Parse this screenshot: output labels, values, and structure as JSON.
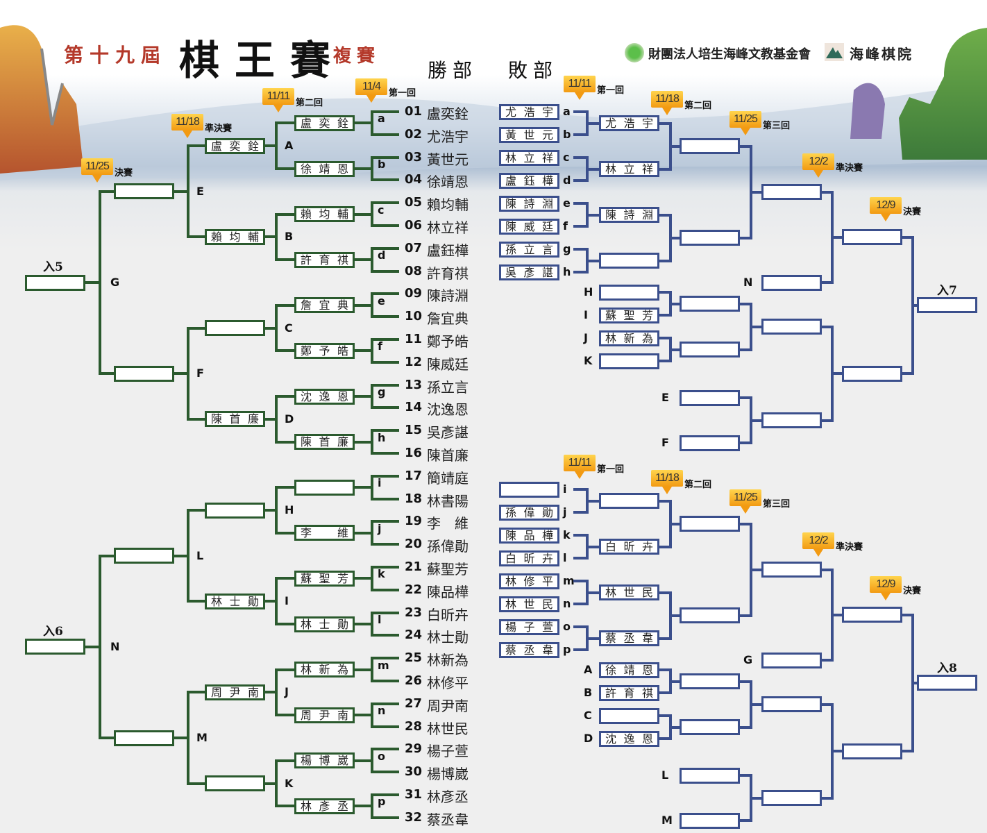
{
  "header": {
    "edition": "第十九屆",
    "title": "棋王賽",
    "stage": "複賽",
    "winners_label": "勝部",
    "losers_label": "敗部",
    "foundation": "財團法人培生海峰文教基金會",
    "academy": "海峰棋院"
  },
  "colors": {
    "winners_line": "#2b5a2e",
    "losers_line": "#3b4f8c",
    "badge": "#f5a623",
    "title_red": "#b4392a"
  },
  "winners": {
    "badges": [
      {
        "date": "11/4",
        "label": "第一回"
      },
      {
        "date": "11/11",
        "label": "第二回"
      },
      {
        "date": "11/18",
        "label": "準決賽"
      },
      {
        "date": "11/25",
        "label": "決賽"
      }
    ],
    "players": [
      {
        "num": "01",
        "name": "盧奕銓"
      },
      {
        "num": "02",
        "name": "尤浩宇"
      },
      {
        "num": "03",
        "name": "黃世元"
      },
      {
        "num": "04",
        "name": "徐靖恩"
      },
      {
        "num": "05",
        "name": "賴均輔"
      },
      {
        "num": "06",
        "name": "林立祥"
      },
      {
        "num": "07",
        "name": "盧鈺樺"
      },
      {
        "num": "08",
        "name": "許育祺"
      },
      {
        "num": "09",
        "name": "陳詩淵"
      },
      {
        "num": "10",
        "name": "詹宜典"
      },
      {
        "num": "11",
        "name": "鄭予皓"
      },
      {
        "num": "12",
        "name": "陳威廷"
      },
      {
        "num": "13",
        "name": "孫立言"
      },
      {
        "num": "14",
        "name": "沈逸恩"
      },
      {
        "num": "15",
        "name": "吳彥諶"
      },
      {
        "num": "16",
        "name": "陳首廉"
      },
      {
        "num": "17",
        "name": "簡靖庭"
      },
      {
        "num": "18",
        "name": "林書陽"
      },
      {
        "num": "19",
        "name": "李　維"
      },
      {
        "num": "20",
        "name": "孫偉勛"
      },
      {
        "num": "21",
        "name": "蘇聖芳"
      },
      {
        "num": "22",
        "name": "陳品樺"
      },
      {
        "num": "23",
        "name": "白昕卉"
      },
      {
        "num": "24",
        "name": "林士勛"
      },
      {
        "num": "25",
        "name": "林新為"
      },
      {
        "num": "26",
        "name": "林修平"
      },
      {
        "num": "27",
        "name": "周尹南"
      },
      {
        "num": "28",
        "name": "林世民"
      },
      {
        "num": "29",
        "name": "楊子萱"
      },
      {
        "num": "30",
        "name": "楊博崴"
      },
      {
        "num": "31",
        "name": "林彥丞"
      },
      {
        "num": "32",
        "name": "蔡丞韋"
      }
    ],
    "round1_letters": [
      "a",
      "b",
      "c",
      "d",
      "e",
      "f",
      "g",
      "h",
      "i",
      "j",
      "k",
      "l",
      "m",
      "n",
      "o",
      "p"
    ],
    "round2": [
      "盧奕銓",
      "徐靖恩",
      "賴均輔",
      "許育祺",
      "詹宜典",
      "鄭予皓",
      "沈逸恩",
      "陳首廉",
      "",
      "李維",
      "蘇聖芳",
      "林士勛",
      "林新為",
      "周尹南",
      "楊博崴",
      "林彥丞"
    ],
    "round2_letters": [
      "A",
      "B",
      "C",
      "D",
      "H",
      "I",
      "J",
      "K"
    ],
    "round3": [
      "盧奕銓",
      "賴均輔",
      "",
      "陳首廉",
      "",
      "林士勛",
      "周尹南",
      ""
    ],
    "round3_letters": [
      "E",
      "F",
      "L",
      "M"
    ],
    "round4": [
      "",
      "",
      "",
      ""
    ],
    "round4_letters": [
      "G",
      "N"
    ],
    "round5": [
      "",
      ""
    ],
    "entries": [
      "入5",
      "入6"
    ]
  },
  "losers_top": {
    "badges": [
      {
        "date": "11/11",
        "label": "第一回"
      },
      {
        "date": "11/18",
        "label": "第二回"
      },
      {
        "date": "11/25",
        "label": "第三回"
      },
      {
        "date": "12/2",
        "label": "準決賽"
      },
      {
        "date": "12/9",
        "label": "決賽"
      }
    ],
    "round1": [
      {
        "letter": "a",
        "name": "尤浩宇"
      },
      {
        "letter": "b",
        "name": "黃世元"
      },
      {
        "letter": "c",
        "name": "林立祥"
      },
      {
        "letter": "d",
        "name": "盧鈺樺"
      },
      {
        "letter": "e",
        "name": "陳詩淵"
      },
      {
        "letter": "f",
        "name": "陳威廷"
      },
      {
        "letter": "g",
        "name": "孫立言"
      },
      {
        "letter": "h",
        "name": "吳彥諶"
      }
    ],
    "round2": [
      "尤浩宇",
      "林立祥",
      "陳詩淵",
      ""
    ],
    "round3": [
      "",
      ""
    ],
    "drop_in": [
      {
        "letter": "H",
        "name": ""
      },
      {
        "letter": "I",
        "name": "蘇聖芳"
      },
      {
        "letter": "J",
        "name": "林新為"
      },
      {
        "letter": "K",
        "name": ""
      }
    ],
    "drop_in_round": [
      "",
      ""
    ],
    "quarter": [
      "",
      "",
      ""
    ],
    "quarter_letter": "N",
    "late_drop_in": [
      {
        "letter": "E",
        "name": ""
      },
      {
        "letter": "F",
        "name": ""
      }
    ],
    "late_round": [
      ""
    ],
    "semifinal": [
      "",
      ""
    ],
    "final": [
      ""
    ],
    "entry": "入7"
  },
  "losers_bottom": {
    "badges": [
      {
        "date": "11/11",
        "label": "第一回"
      },
      {
        "date": "11/18",
        "label": "第二回"
      },
      {
        "date": "11/25",
        "label": "第三回"
      },
      {
        "date": "12/2",
        "label": "準決賽"
      },
      {
        "date": "12/9",
        "label": "決賽"
      }
    ],
    "round1": [
      {
        "letter": "i",
        "name": ""
      },
      {
        "letter": "j",
        "name": "孫偉勛"
      },
      {
        "letter": "k",
        "name": "陳品樺"
      },
      {
        "letter": "l",
        "name": "白昕卉"
      },
      {
        "letter": "m",
        "name": "林修平"
      },
      {
        "letter": "n",
        "name": "林世民"
      },
      {
        "letter": "o",
        "name": "楊子萱"
      },
      {
        "letter": "p",
        "name": "蔡丞韋"
      }
    ],
    "round2": [
      "",
      "白昕卉",
      "林世民",
      "蔡丞韋"
    ],
    "round3": [
      "",
      ""
    ],
    "drop_in": [
      {
        "letter": "A",
        "name": "徐靖恩"
      },
      {
        "letter": "B",
        "name": "許育祺"
      },
      {
        "letter": "C",
        "name": ""
      },
      {
        "letter": "D",
        "name": "沈逸恩"
      }
    ],
    "drop_in_round": [
      "",
      ""
    ],
    "quarter": [
      "",
      "",
      ""
    ],
    "quarter_letter": "G",
    "late_drop_in": [
      {
        "letter": "L",
        "name": ""
      },
      {
        "letter": "M",
        "name": ""
      }
    ],
    "late_round": [
      ""
    ],
    "semifinal": [
      "",
      ""
    ],
    "final": [
      ""
    ],
    "entry": "入8"
  }
}
